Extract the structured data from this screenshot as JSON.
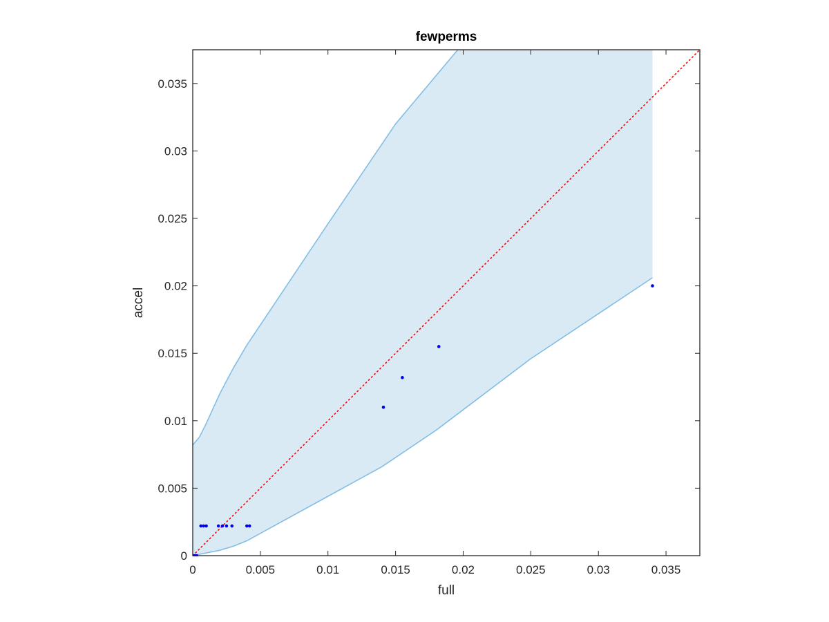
{
  "chart_data": {
    "type": "scatter",
    "title": "fewperms",
    "xlabel": "full",
    "ylabel": "accel",
    "xlim": [
      0,
      0.0375
    ],
    "ylim": [
      0,
      0.0375
    ],
    "xticks": [
      0,
      0.005,
      0.01,
      0.015,
      0.02,
      0.025,
      0.03,
      0.035
    ],
    "xtick_labels": [
      "0",
      "0.005",
      "0.01",
      "0.015",
      "0.02",
      "0.025",
      "0.03",
      "0.035"
    ],
    "yticks": [
      0,
      0.005,
      0.01,
      0.015,
      0.02,
      0.025,
      0.03,
      0.035
    ],
    "ytick_labels": [
      "0",
      "0.005",
      "0.01",
      "0.015",
      "0.02",
      "0.025",
      "0.03",
      "0.035"
    ],
    "grid": false,
    "colors": {
      "points": "#0000ee",
      "band_fill": "#daeaf5",
      "band_edge": "#84bde3",
      "diagonal": "#ff0000",
      "axes": "#262626"
    },
    "confidence_band": {
      "upper": [
        [
          0,
          0.0082
        ],
        [
          0.0005,
          0.0088
        ],
        [
          0.001,
          0.0098
        ],
        [
          0.002,
          0.012
        ],
        [
          0.003,
          0.0139
        ],
        [
          0.004,
          0.0156
        ],
        [
          0.01,
          0.0246
        ],
        [
          0.015,
          0.032
        ],
        [
          0.0196,
          0.0375
        ],
        [
          0.034,
          0.0375
        ]
      ],
      "lower": [
        [
          0,
          0.0
        ],
        [
          0.001,
          0.0002
        ],
        [
          0.002,
          0.0004
        ],
        [
          0.003,
          0.0007
        ],
        [
          0.004,
          0.0011
        ],
        [
          0.01,
          0.0044
        ],
        [
          0.014,
          0.0066
        ],
        [
          0.018,
          0.0093
        ],
        [
          0.025,
          0.0146
        ],
        [
          0.034,
          0.0206
        ]
      ]
    },
    "diagonal": [
      [
        0,
        0
      ],
      [
        0.0375,
        0.0375
      ]
    ],
    "points": [
      {
        "x": 0,
        "y": 0
      },
      {
        "x": 0.0001,
        "y": 0
      },
      {
        "x": 0.0002,
        "y": 0
      },
      {
        "x": 0.0003,
        "y": 0
      },
      {
        "x": 0.0006,
        "y": 0.0022
      },
      {
        "x": 0.0008,
        "y": 0.0022
      },
      {
        "x": 0.001,
        "y": 0.0022
      },
      {
        "x": 0.0019,
        "y": 0.0022
      },
      {
        "x": 0.0022,
        "y": 0.0022
      },
      {
        "x": 0.0025,
        "y": 0.0022
      },
      {
        "x": 0.0029,
        "y": 0.0022
      },
      {
        "x": 0.004,
        "y": 0.0022
      },
      {
        "x": 0.0042,
        "y": 0.0022
      },
      {
        "x": 0.0141,
        "y": 0.011
      },
      {
        "x": 0.0155,
        "y": 0.0132
      },
      {
        "x": 0.0182,
        "y": 0.0155
      },
      {
        "x": 0.034,
        "y": 0.02
      }
    ]
  }
}
